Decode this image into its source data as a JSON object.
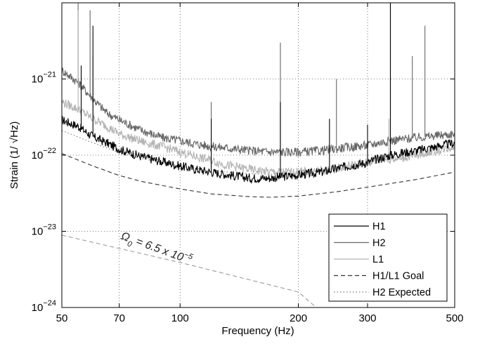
{
  "chart_data": {
    "type": "line",
    "xlabel": "Frequency (Hz)",
    "ylabel": "Strain (1/ √Hz)",
    "xscale": "log",
    "yscale": "log",
    "xlim": [
      50,
      500
    ],
    "ylim": [
      1e-24,
      1e-20
    ],
    "xticks": [
      50,
      70,
      100,
      200,
      300,
      500
    ],
    "xtick_labels": [
      "50",
      "70",
      "100",
      "200",
      "300",
      "500"
    ],
    "yticks": [
      1e-24,
      1e-23,
      1e-22,
      1e-21
    ],
    "ytick_labels": [
      {
        "base": "10",
        "exp": "−24"
      },
      {
        "base": "10",
        "exp": "−23"
      },
      {
        "base": "10",
        "exp": "−22"
      },
      {
        "base": "10",
        "exp": "−21"
      }
    ],
    "grid": true,
    "legend_position": "bottom-right",
    "annotation": {
      "omega": "Ω",
      "sub": "0",
      "text": " = 6.5  x 10",
      "exp": "−5"
    },
    "series": [
      {
        "name": "H1",
        "color": "#000000",
        "style": "solid",
        "x": [
          50,
          55,
          60,
          65,
          70,
          80,
          90,
          100,
          110,
          120,
          130,
          150,
          170,
          200,
          230,
          260,
          300,
          330,
          360,
          400,
          450,
          500
        ],
        "y": [
          2.9e-22,
          2.4e-22,
          1.75e-22,
          1.45e-22,
          1.2e-22,
          9.5e-23,
          8.2e-23,
          7.2e-23,
          6.5e-23,
          6e-23,
          5.6e-23,
          5e-23,
          5e-23,
          5.5e-23,
          6e-23,
          7e-23,
          8e-23,
          9.5e-23,
          1.05e-22,
          1.15e-22,
          1.3e-22,
          1.45e-22
        ],
        "peaks": [
          [
            56,
            1.5e-21
          ],
          [
            60,
            5e-21
          ],
          [
            120,
            3e-22
          ],
          [
            180,
            5e-22
          ],
          [
            240,
            3e-22
          ],
          [
            300,
            2.5e-22
          ],
          [
            343,
            1.2e-20
          ]
        ]
      },
      {
        "name": "H2",
        "color": "#666666",
        "style": "solid",
        "x": [
          50,
          55,
          60,
          65,
          70,
          80,
          90,
          100,
          110,
          120,
          130,
          150,
          170,
          200,
          230,
          260,
          300,
          330,
          360,
          400,
          450,
          500
        ],
        "y": [
          1.3e-21,
          9e-22,
          5.5e-22,
          3.6e-22,
          2.9e-22,
          2.1e-22,
          1.7e-22,
          1.55e-22,
          1.4e-22,
          1.3e-22,
          1.25e-22,
          1.15e-22,
          1.1e-22,
          1.1e-22,
          1.15e-22,
          1.25e-22,
          1.35e-22,
          1.5e-22,
          1.6e-22,
          1.7e-22,
          1.8e-22,
          1.9e-22
        ],
        "peaks": [
          [
            55,
            1e-20
          ],
          [
            59,
            8e-21
          ],
          [
            120,
            5e-22
          ],
          [
            180,
            3e-21
          ],
          [
            250,
            1e-21
          ],
          [
            343,
            1e-20
          ],
          [
            390,
            2e-21
          ],
          [
            420,
            5e-21
          ]
        ]
      },
      {
        "name": "L1",
        "color": "#b3b3b3",
        "style": "solid",
        "x": [
          50,
          55,
          60,
          65,
          70,
          80,
          90,
          100,
          110,
          120,
          130,
          150,
          170,
          200,
          230,
          260,
          300,
          330,
          360,
          400,
          450,
          500
        ],
        "y": [
          5e-22,
          4e-22,
          3e-22,
          2.4e-22,
          1.9e-22,
          1.5e-22,
          1.3e-22,
          1.1e-22,
          9.5e-23,
          8.5e-23,
          7.5e-23,
          6.5e-23,
          6e-23,
          6e-23,
          6.2e-23,
          7e-23,
          8e-23,
          9e-23,
          9e-23,
          1e-22,
          1.15e-22,
          1.3e-22
        ],
        "peaks": [
          [
            55,
            8e-21
          ],
          [
            60,
            2e-21
          ],
          [
            180,
            4e-22
          ],
          [
            340,
            3e-22
          ]
        ]
      },
      {
        "name": "H1/L1 Goal",
        "color": "#333333",
        "style": "dashed",
        "x": [
          50,
          60,
          70,
          80,
          100,
          120,
          150,
          170,
          200,
          250,
          300,
          400,
          500
        ],
        "y": [
          1.05e-22,
          7.2e-23,
          5.4e-23,
          4.5e-23,
          3.6e-23,
          3.1e-23,
          2.85e-23,
          2.8e-23,
          2.9e-23,
          3.3e-23,
          3.8e-23,
          4.8e-23,
          6e-23
        ]
      },
      {
        "name": "H2 Expected",
        "color": "#777777",
        "style": "dotted",
        "x": [
          50,
          60,
          70,
          80,
          100,
          120,
          150,
          170,
          200,
          250,
          300,
          400,
          500
        ],
        "y": [
          2.1e-22,
          1.45e-22,
          1.08e-22,
          9e-23,
          7.2e-23,
          6.2e-23,
          5.7e-23,
          5.6e-23,
          5.8e-23,
          6.6e-23,
          7.6e-23,
          9.6e-23,
          1.2e-22
        ]
      },
      {
        "name": "",
        "color": "#999999",
        "style": "dashed",
        "x": [
          50,
          100,
          200,
          222
        ],
        "y": [
          8.9e-24,
          3.9e-24,
          1.6e-24,
          1e-24
        ]
      }
    ]
  }
}
